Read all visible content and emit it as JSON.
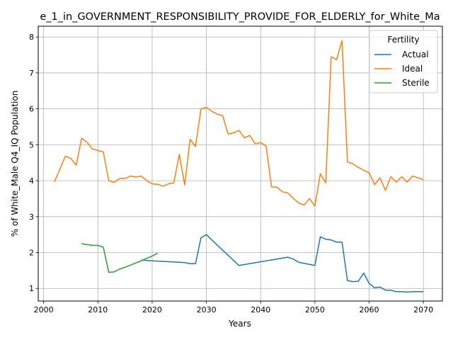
{
  "chart_data": {
    "type": "line",
    "title": "e_1_in_GOVERNMENT_RESPONSIBILITY_PROVIDE_FOR_ELDERLY_for_White_Ma",
    "xlabel": "Years",
    "ylabel": "% of White_Male Q4_IQ Population",
    "xlim": [
      1999,
      2073.5
    ],
    "ylim": [
      0.65,
      8.3
    ],
    "x_ticks": [
      2000,
      2010,
      2020,
      2030,
      2040,
      2050,
      2060,
      2070
    ],
    "y_ticks": [
      1,
      2,
      3,
      4,
      5,
      6,
      7,
      8
    ],
    "grid": true,
    "legend": {
      "title": "Fertility",
      "placement": "top-right"
    },
    "series": [
      {
        "name": "Actual",
        "color": "#1f77b4",
        "x": [
          2018,
          2020,
          2025,
          2026,
          2027,
          2028,
          2029,
          2030,
          2031,
          2036,
          2045,
          2046,
          2047,
          2050,
          2051,
          2052,
          2053,
          2054,
          2055,
          2056,
          2057,
          2058,
          2059,
          2060,
          2061,
          2062,
          2063,
          2064,
          2065,
          2066,
          2067,
          2068,
          2069,
          2070
        ],
        "y": [
          1.79,
          1.77,
          1.73,
          1.72,
          1.69,
          1.69,
          2.41,
          2.5,
          2.35,
          1.64,
          1.87,
          1.82,
          1.73,
          1.64,
          2.44,
          2.37,
          2.35,
          2.29,
          2.29,
          1.22,
          1.19,
          1.2,
          1.43,
          1.14,
          1.02,
          1.04,
          0.95,
          0.95,
          0.91,
          0.91,
          0.9,
          0.91,
          0.91,
          0.91
        ]
      },
      {
        "name": "Ideal",
        "color": "#ff7f0e",
        "x": [
          2002,
          2004,
          2005,
          2006,
          2007,
          2008,
          2009,
          2010,
          2011,
          2012,
          2013,
          2014,
          2015,
          2016,
          2017,
          2018,
          2019,
          2020,
          2021,
          2022,
          2023,
          2024,
          2025,
          2026,
          2027,
          2028,
          2029,
          2030,
          2031,
          2032,
          2033,
          2034,
          2035,
          2036,
          2037,
          2038,
          2039,
          2040,
          2041,
          2042,
          2043,
          2044,
          2045,
          2046,
          2047,
          2048,
          2049,
          2050,
          2051,
          2052,
          2053,
          2054,
          2055,
          2056,
          2057,
          2058,
          2059,
          2060,
          2061,
          2062,
          2063,
          2064,
          2065,
          2066,
          2067,
          2068,
          2069,
          2070
        ],
        "y": [
          3.97,
          4.68,
          4.62,
          4.43,
          5.18,
          5.07,
          4.88,
          4.84,
          4.8,
          4.0,
          3.95,
          4.06,
          4.06,
          4.13,
          4.1,
          4.13,
          4.0,
          3.91,
          3.9,
          3.85,
          3.91,
          3.94,
          4.73,
          3.88,
          5.15,
          4.95,
          6.0,
          6.04,
          5.93,
          5.85,
          5.81,
          5.3,
          5.33,
          5.4,
          5.19,
          5.26,
          5.03,
          5.06,
          4.97,
          3.83,
          3.82,
          3.69,
          3.66,
          3.51,
          3.38,
          3.32,
          3.5,
          3.29,
          4.19,
          3.94,
          7.45,
          7.37,
          7.9,
          4.52,
          4.47,
          4.37,
          4.29,
          4.22,
          3.89,
          4.08,
          3.73,
          4.11,
          3.96,
          4.11,
          3.96,
          4.13,
          4.08,
          4.03
        ]
      },
      {
        "name": "Sterile",
        "color": "#2ca02c",
        "x": [
          2007,
          2008,
          2009,
          2010,
          2011,
          2012,
          2013,
          2014,
          2015,
          2016,
          2017,
          2018,
          2019,
          2020,
          2021
        ],
        "y": [
          2.25,
          2.22,
          2.2,
          2.2,
          2.15,
          1.45,
          1.46,
          1.54,
          1.59,
          1.65,
          1.71,
          1.77,
          1.84,
          1.9,
          1.98
        ]
      }
    ]
  }
}
